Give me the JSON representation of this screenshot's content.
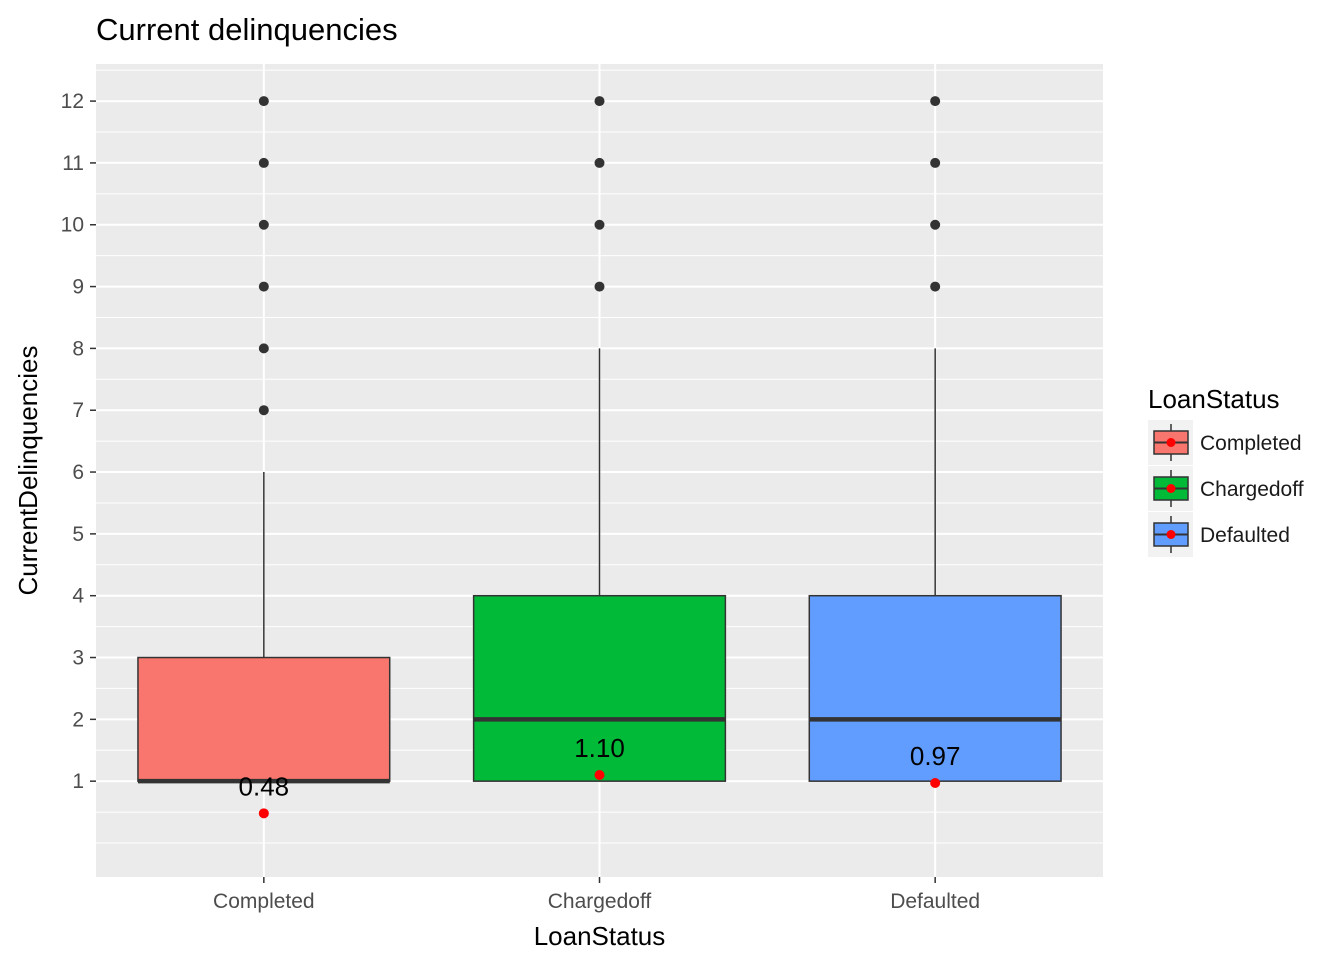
{
  "chart_data": {
    "type": "box",
    "title": "Current delinquencies",
    "xlabel": "LoanStatus",
    "ylabel": "CurrentDelinquencies",
    "categories": [
      "Completed",
      "Chargedoff",
      "Defaulted"
    ],
    "y_ticks": [
      1,
      2,
      3,
      4,
      5,
      6,
      7,
      8,
      9,
      10,
      11,
      12
    ],
    "ylim": [
      -0.55,
      12.6
    ],
    "grid": true,
    "legend": {
      "title": "LoanStatus",
      "placement": "right",
      "entries": [
        "Completed",
        "Chargedoff",
        "Defaulted"
      ]
    },
    "series": [
      {
        "name": "Completed",
        "color": "#F8766D",
        "q1": 1,
        "median": 1,
        "q3": 3,
        "whisker_low": 1,
        "whisker_high": 6,
        "outliers": [
          7,
          8,
          9,
          10,
          11,
          12
        ],
        "mean": 0.48,
        "mean_label": "0.48"
      },
      {
        "name": "Chargedoff",
        "color": "#00BA38",
        "q1": 1,
        "median": 2,
        "q3": 4,
        "whisker_low": 1,
        "whisker_high": 8,
        "outliers": [
          9,
          10,
          11,
          12
        ],
        "mean": 1.1,
        "mean_label": "1.10"
      },
      {
        "name": "Defaulted",
        "color": "#619CFF",
        "q1": 1,
        "median": 2,
        "q3": 4,
        "whisker_low": 1,
        "whisker_high": 8,
        "outliers": [
          9,
          10,
          11,
          12
        ],
        "mean": 0.97,
        "mean_label": "0.97"
      }
    ],
    "colors": {
      "panel_background": "#EBEBEB",
      "grid": "#FFFFFF",
      "outlier": "#333333",
      "mean_point": "#FF0000",
      "box_outline": "#333333"
    }
  }
}
